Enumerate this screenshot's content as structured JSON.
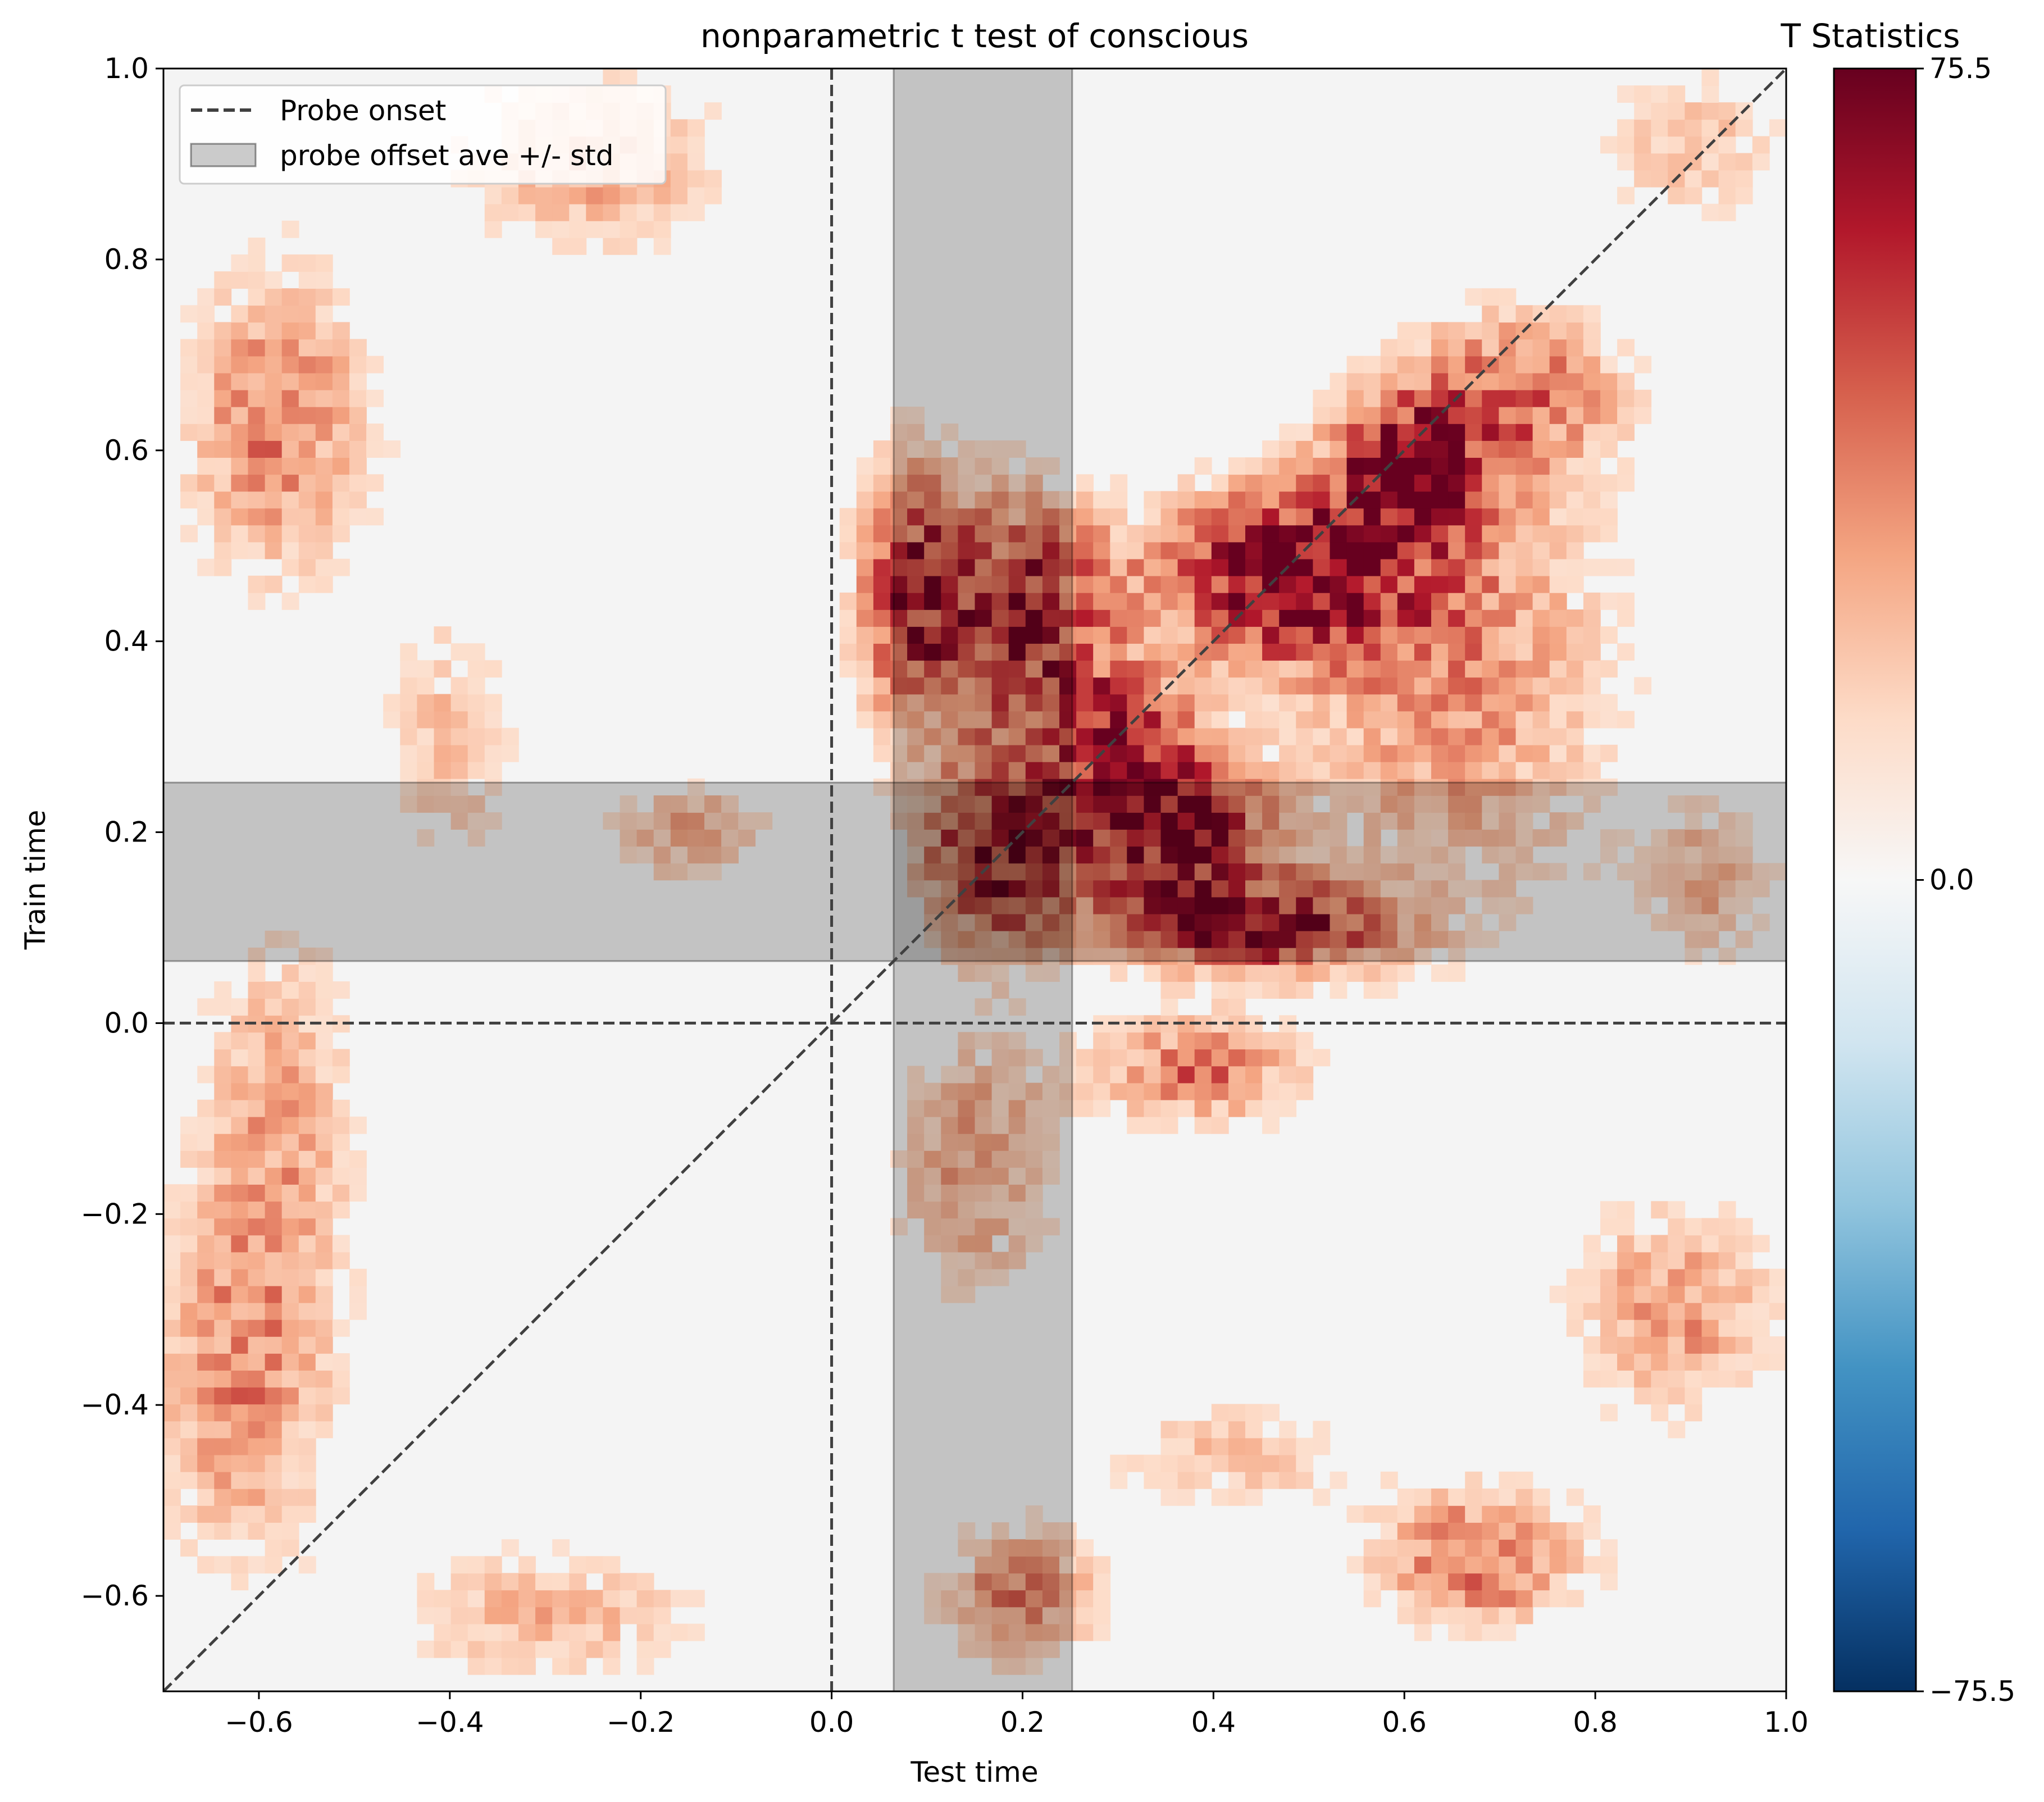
{
  "chart_data": {
    "type": "heatmap",
    "title": "nonparametric t test of conscious",
    "xlabel": "Test time",
    "ylabel": "Train time",
    "xlim": [
      -0.7,
      1.0
    ],
    "ylim": [
      -0.7,
      1.0
    ],
    "x_ticks": [
      "−0.6",
      "−0.4",
      "−0.2",
      "0.0",
      "0.2",
      "0.4",
      "0.6",
      "0.8",
      "1.0"
    ],
    "x_tick_values": [
      -0.6,
      -0.4,
      -0.2,
      0.0,
      0.2,
      0.4,
      0.6,
      0.8,
      1.0
    ],
    "y_ticks": [
      "−0.6",
      "−0.4",
      "−0.2",
      "0.0",
      "0.2",
      "0.4",
      "0.6",
      "0.8",
      "1.0"
    ],
    "y_tick_values": [
      -0.6,
      -0.4,
      -0.2,
      0.0,
      0.2,
      0.4,
      0.6,
      0.8,
      1.0
    ],
    "colormap": "RdBu_r",
    "colorbar": {
      "title": "T Statistics",
      "min": -75.5,
      "max": 75.5,
      "ticks": [
        "75.5",
        "0.0",
        "−75.5"
      ],
      "tick_values": [
        75.5,
        0.0,
        -75.5
      ]
    },
    "probe_onset": 0.0,
    "probe_offset_band": [
      0.065,
      0.252
    ],
    "diagonal": true,
    "legend": {
      "placement": "upper-left",
      "entries": [
        "Probe onset",
        "probe offset ave +/- std"
      ]
    },
    "blobs": [
      {
        "cx": 0.47,
        "cy": 0.47,
        "sx": 0.09,
        "sy": 0.06,
        "peak": 75
      },
      {
        "cx": 0.36,
        "cy": 0.2,
        "sx": 0.07,
        "sy": 0.06,
        "peak": 65
      },
      {
        "cx": 0.45,
        "cy": 0.1,
        "sx": 0.1,
        "sy": 0.035,
        "peak": 60
      },
      {
        "cx": 0.18,
        "cy": 0.18,
        "sx": 0.06,
        "sy": 0.07,
        "peak": 62
      },
      {
        "cx": 0.2,
        "cy": 0.43,
        "sx": 0.07,
        "sy": 0.09,
        "peak": 60
      },
      {
        "cx": 0.08,
        "cy": 0.45,
        "sx": 0.04,
        "sy": 0.1,
        "peak": 50
      },
      {
        "cx": 0.6,
        "cy": 0.58,
        "sx": 0.05,
        "sy": 0.05,
        "peak": 65
      },
      {
        "cx": 0.3,
        "cy": 0.3,
        "sx": 0.05,
        "sy": 0.05,
        "peak": 55
      },
      {
        "cx": 0.38,
        "cy": -0.05,
        "sx": 0.08,
        "sy": 0.04,
        "peak": 40
      },
      {
        "cx": 0.65,
        "cy": 0.38,
        "sx": 0.12,
        "sy": 0.18,
        "peak": 35
      },
      {
        "cx": 0.72,
        "cy": 0.66,
        "sx": 0.08,
        "sy": 0.06,
        "peak": 35
      },
      {
        "cx": 0.68,
        "cy": -0.56,
        "sx": 0.08,
        "sy": 0.05,
        "peak": 45
      },
      {
        "cx": 0.2,
        "cy": -0.6,
        "sx": 0.06,
        "sy": 0.05,
        "peak": 38
      },
      {
        "cx": 0.15,
        "cy": -0.15,
        "sx": 0.06,
        "sy": 0.1,
        "peak": 30
      },
      {
        "cx": -0.58,
        "cy": 0.63,
        "sx": 0.07,
        "sy": 0.12,
        "peak": 38
      },
      {
        "cx": -0.62,
        "cy": -0.38,
        "sx": 0.07,
        "sy": 0.14,
        "peak": 32
      },
      {
        "cx": -0.58,
        "cy": -0.1,
        "sx": 0.06,
        "sy": 0.15,
        "peak": 26
      },
      {
        "cx": 0.88,
        "cy": -0.3,
        "sx": 0.08,
        "sy": 0.08,
        "peak": 32
      },
      {
        "cx": -0.25,
        "cy": 0.9,
        "sx": 0.1,
        "sy": 0.07,
        "peak": 28
      },
      {
        "cx": -0.15,
        "cy": 0.2,
        "sx": 0.06,
        "sy": 0.04,
        "peak": 26
      },
      {
        "cx": -0.3,
        "cy": -0.62,
        "sx": 0.12,
        "sy": 0.05,
        "peak": 25
      },
      {
        "cx": 0.9,
        "cy": 0.92,
        "sx": 0.07,
        "sy": 0.06,
        "peak": 22
      },
      {
        "cx": 0.42,
        "cy": -0.45,
        "sx": 0.1,
        "sy": 0.04,
        "peak": 22
      },
      {
        "cx": 0.92,
        "cy": 0.15,
        "sx": 0.05,
        "sy": 0.06,
        "peak": 24
      },
      {
        "cx": -0.4,
        "cy": 0.3,
        "sx": 0.05,
        "sy": 0.1,
        "peak": 22
      }
    ]
  }
}
